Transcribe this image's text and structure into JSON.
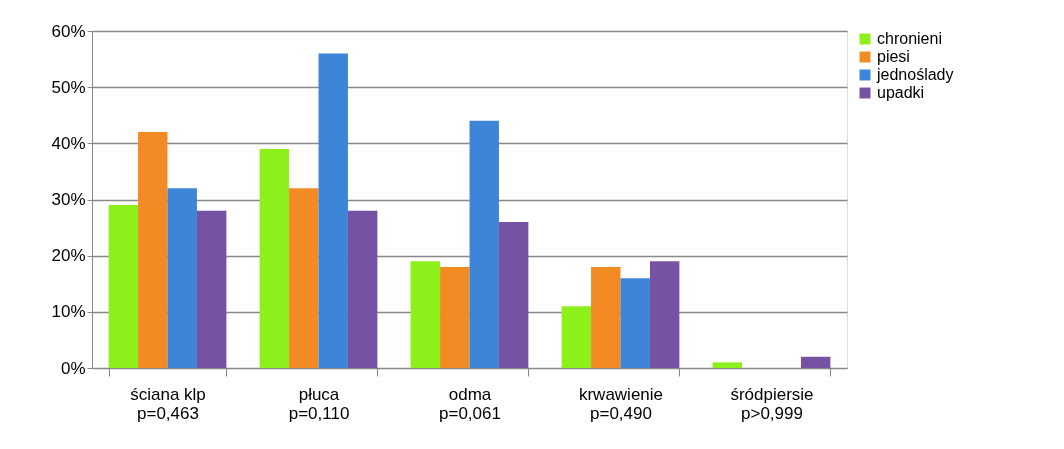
{
  "chart_data": {
    "type": "bar",
    "categories": [
      "ściana klp\np=0,463",
      "płuca\np=0,110",
      "odma\np=0,061",
      "krwawienie\np=0,490",
      "śródpiersie\np>0,999"
    ],
    "series": [
      {
        "name": "chronieni",
        "color": "#8ef01a",
        "values": [
          29,
          39,
          19,
          11,
          1
        ]
      },
      {
        "name": "piesi",
        "color": "#f38b25",
        "values": [
          42,
          32,
          18,
          18,
          0
        ]
      },
      {
        "name": "jednoślady",
        "color": "#3c85d8",
        "values": [
          32,
          56,
          44,
          16,
          0
        ]
      },
      {
        "name": "upadki",
        "color": "#7652a3",
        "values": [
          28,
          28,
          26,
          19,
          2
        ]
      }
    ],
    "ylim": [
      0,
      60
    ],
    "yticks": [
      {
        "value": 0,
        "label": "0%"
      },
      {
        "value": 10,
        "label": "10%"
      },
      {
        "value": 20,
        "label": "20%"
      },
      {
        "value": 30,
        "label": "30%"
      },
      {
        "value": 40,
        "label": "40%"
      },
      {
        "value": 50,
        "label": "50%"
      },
      {
        "value": 60,
        "label": "60%"
      }
    ],
    "grid": "y",
    "legend": "right"
  }
}
